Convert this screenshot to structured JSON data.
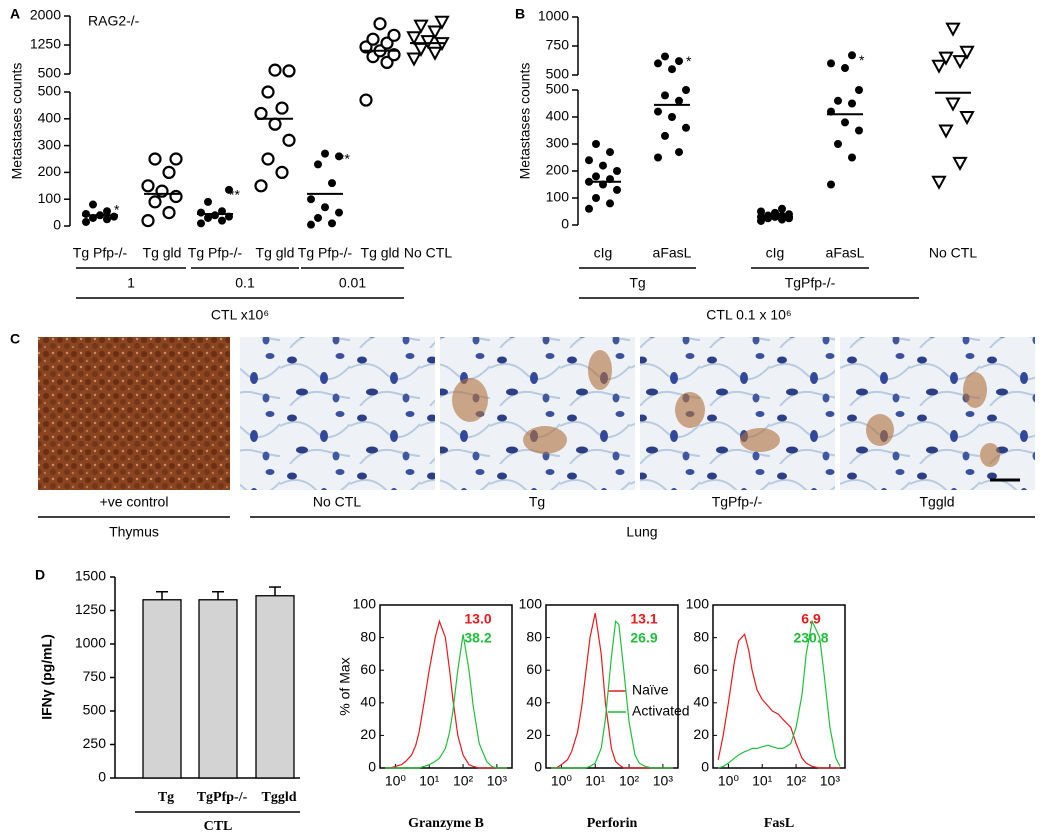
{
  "chart_data": [
    {
      "panel": "A",
      "type": "scatter",
      "title": "RAG2-/-",
      "y_label": "Metastases counts",
      "categories": [
        "Tg Pfp-/-",
        "Tg gld",
        "Tg Pfp-/-",
        "Tg gld",
        "Tg Pfp-/-",
        "Tg gld",
        "No CTL"
      ],
      "values": [
        [
          15,
          25,
          30,
          35,
          40,
          45,
          55,
          80
        ],
        [
          20,
          50,
          90,
          110,
          130,
          150,
          200,
          250,
          250
        ],
        [
          10,
          20,
          30,
          35,
          40,
          50,
          55,
          90,
          135
        ],
        [
          150,
          200,
          250,
          320,
          380,
          420,
          440,
          500,
          580,
          600
        ],
        [
          5,
          10,
          30,
          50,
          70,
          100,
          160,
          230,
          260,
          270
        ],
        [
          470,
          800,
          950,
          1000,
          1100,
          1200,
          1300,
          1400,
          1500,
          1800
        ],
        [
          900,
          1050,
          1150,
          1300,
          1350,
          1450,
          1600,
          1750,
          1850
        ]
      ],
      "means": [
        40,
        120,
        45,
        400,
        120,
        1100,
        1300
      ],
      "markers": [
        "filled",
        "open",
        "filled",
        "open",
        "filled",
        "open",
        "triangle"
      ],
      "annotations": [
        "*",
        null,
        "**",
        null,
        "**",
        null,
        null
      ],
      "groups": [
        "1",
        "0.1",
        "0.01"
      ],
      "group_title": "CTL x10⁶",
      "ylim": [
        0,
        500
      ],
      "ylim_upper": [
        500,
        2000
      ],
      "yticks": [
        0,
        100,
        200,
        300,
        400,
        500
      ],
      "yticks_upper": [
        500,
        1250,
        2000
      ]
    },
    {
      "panel": "B",
      "type": "scatter",
      "y_label": "Metastases counts",
      "categories": [
        "cIg",
        "aFasL",
        "cIg",
        "aFasL",
        "No CTL"
      ],
      "values": [
        [
          60,
          80,
          100,
          130,
          150,
          160,
          170,
          180,
          200,
          220,
          240,
          270,
          300
        ],
        [
          250,
          270,
          330,
          360,
          400,
          420,
          460,
          480,
          500,
          550,
          600,
          620,
          660
        ],
        [
          15,
          20,
          25,
          25,
          30,
          30,
          35,
          35,
          40,
          45,
          50,
          60
        ],
        [
          150,
          250,
          300,
          350,
          380,
          420,
          450,
          460,
          500,
          560,
          600,
          670
        ],
        [
          160,
          230,
          350,
          400,
          450,
          580,
          620,
          650,
          700,
          900
        ]
      ],
      "means": [
        160,
        445,
        30,
        410,
        490
      ],
      "markers": [
        "filled",
        "filled",
        "filled",
        "filled",
        "triangle"
      ],
      "annotations": [
        null,
        "*",
        null,
        "*",
        null
      ],
      "groups": [
        "Tg",
        "TgPfp-/-"
      ],
      "group_title": "CTL 0.1 x 10⁶",
      "ylim": [
        0,
        500
      ],
      "ylim_upper": [
        500,
        1000
      ],
      "yticks": [
        0,
        100,
        200,
        300,
        400,
        500
      ],
      "yticks_upper": [
        500,
        750,
        1000
      ]
    },
    {
      "panel": "D",
      "type": "bar",
      "y_label": "IFNγ (pg/mL)",
      "categories": [
        "Tg",
        "TgPfp-/-",
        "Tggld"
      ],
      "values": [
        1330,
        1330,
        1360
      ],
      "errors": [
        60,
        60,
        65
      ],
      "color": "#d3d3d3",
      "group_title": "CTL",
      "ylim": [
        0,
        1500
      ],
      "yticks": [
        0,
        250,
        500,
        750,
        1000,
        1250,
        1500
      ]
    },
    {
      "type": "line",
      "x_label": "Granzyme B",
      "y_label": "% of Max",
      "log_x": true,
      "x": [
        0.5,
        0.7,
        1,
        1.5,
        2,
        3,
        4,
        5,
        7,
        10,
        15,
        20,
        30,
        40,
        50,
        70,
        100,
        150,
        200,
        300,
        500,
        700,
        1000,
        1500,
        2000
      ],
      "xlim": [
        0.35,
        2800
      ],
      "xticks": [
        {
          "value": 1,
          "label": "10⁰"
        },
        {
          "value": 10,
          "label": "10¹"
        },
        {
          "value": 100,
          "label": "10²"
        },
        {
          "value": 1000,
          "label": "10³"
        }
      ],
      "ylim": [
        0,
        100
      ],
      "yticks": [
        0,
        20,
        40,
        60,
        80,
        100
      ],
      "legend": false,
      "series": [
        {
          "name": "Naïve",
          "color": "#e8191d",
          "values": [
            0,
            0,
            1,
            2,
            4,
            8,
            14,
            22,
            40,
            60,
            80,
            90,
            80,
            60,
            42,
            20,
            8,
            2,
            1,
            0,
            0,
            0,
            0,
            0,
            0
          ],
          "mfi": 13.0,
          "mfi_label": "13.0"
        },
        {
          "name": "Activated",
          "color": "#1fbf3a",
          "values": [
            0,
            0,
            0,
            0,
            0,
            0,
            0,
            0,
            1,
            2,
            4,
            6,
            12,
            22,
            35,
            60,
            82,
            60,
            38,
            15,
            4,
            1,
            0,
            0,
            0
          ],
          "mfi": 38.2,
          "mfi_label": "38.2"
        }
      ]
    },
    {
      "type": "line",
      "x_label": "Perforin",
      "log_x": true,
      "x": [
        0.5,
        0.7,
        1,
        1.5,
        2,
        3,
        4,
        5,
        7,
        10,
        15,
        20,
        30,
        40,
        50,
        70,
        100,
        150,
        200,
        300,
        500,
        700,
        1000,
        1500,
        2000
      ],
      "xlim": [
        0.35,
        2800
      ],
      "xticks": [
        {
          "value": 1,
          "label": "10⁰"
        },
        {
          "value": 10,
          "label": "10¹"
        },
        {
          "value": 100,
          "label": "10²"
        },
        {
          "value": 1000,
          "label": "10³"
        }
      ],
      "ylim": [
        0,
        100
      ],
      "yticks": [
        0,
        20,
        40,
        60,
        80,
        100
      ],
      "legend": "right",
      "series": [
        {
          "name": "Naïve",
          "color": "#e8191d",
          "values": [
            0,
            0,
            2,
            5,
            10,
            22,
            38,
            55,
            80,
            95,
            70,
            40,
            12,
            4,
            2,
            0,
            0,
            0,
            0,
            0,
            0,
            0,
            0,
            0,
            0
          ],
          "mfi": 13.1,
          "mfi_label": "13.1"
        },
        {
          "name": "Activated",
          "color": "#1fbf3a",
          "values": [
            0,
            0,
            0,
            0,
            0,
            0,
            0,
            0,
            1,
            3,
            12,
            30,
            68,
            90,
            88,
            60,
            28,
            8,
            3,
            1,
            0,
            0,
            0,
            0,
            0
          ],
          "mfi": 26.9,
          "mfi_label": "26.9"
        }
      ]
    },
    {
      "type": "line",
      "x_label": "FasL",
      "log_x": true,
      "x": [
        0.5,
        0.7,
        1,
        1.5,
        2,
        3,
        4,
        5,
        7,
        10,
        15,
        20,
        30,
        40,
        50,
        70,
        100,
        150,
        200,
        300,
        500,
        700,
        1000,
        1500,
        2000
      ],
      "xlim": [
        0.35,
        2800
      ],
      "xticks": [
        {
          "value": 1,
          "label": "10⁰"
        },
        {
          "value": 10,
          "label": "10¹"
        },
        {
          "value": 100,
          "label": "10²"
        },
        {
          "value": 1000,
          "label": "10³"
        }
      ],
      "ylim": [
        0,
        100
      ],
      "yticks": [
        0,
        20,
        40,
        60,
        80,
        100
      ],
      "legend": false,
      "series": [
        {
          "name": "Naïve",
          "color": "#e8191d",
          "values": [
            5,
            20,
            40,
            65,
            78,
            82,
            72,
            60,
            48,
            42,
            38,
            35,
            33,
            30,
            28,
            25,
            15,
            6,
            3,
            1,
            0,
            0,
            0,
            0,
            0
          ],
          "mfi": 6.9,
          "mfi_label": "6.9"
        },
        {
          "name": "Activated",
          "color": "#1fbf3a",
          "values": [
            0,
            1,
            3,
            6,
            8,
            10,
            11,
            12,
            12,
            13,
            14,
            13,
            12,
            12,
            13,
            15,
            25,
            45,
            70,
            90,
            80,
            55,
            25,
            6,
            1
          ],
          "mfi": 230.8,
          "mfi_label": "230.8"
        }
      ]
    }
  ],
  "panel_c": {
    "panel": "C",
    "labels": [
      "+ve control",
      "No CTL",
      "Tg",
      "TgPfp-/-",
      "Tggld"
    ],
    "groups": [
      "Thymus",
      "Lung"
    ]
  }
}
